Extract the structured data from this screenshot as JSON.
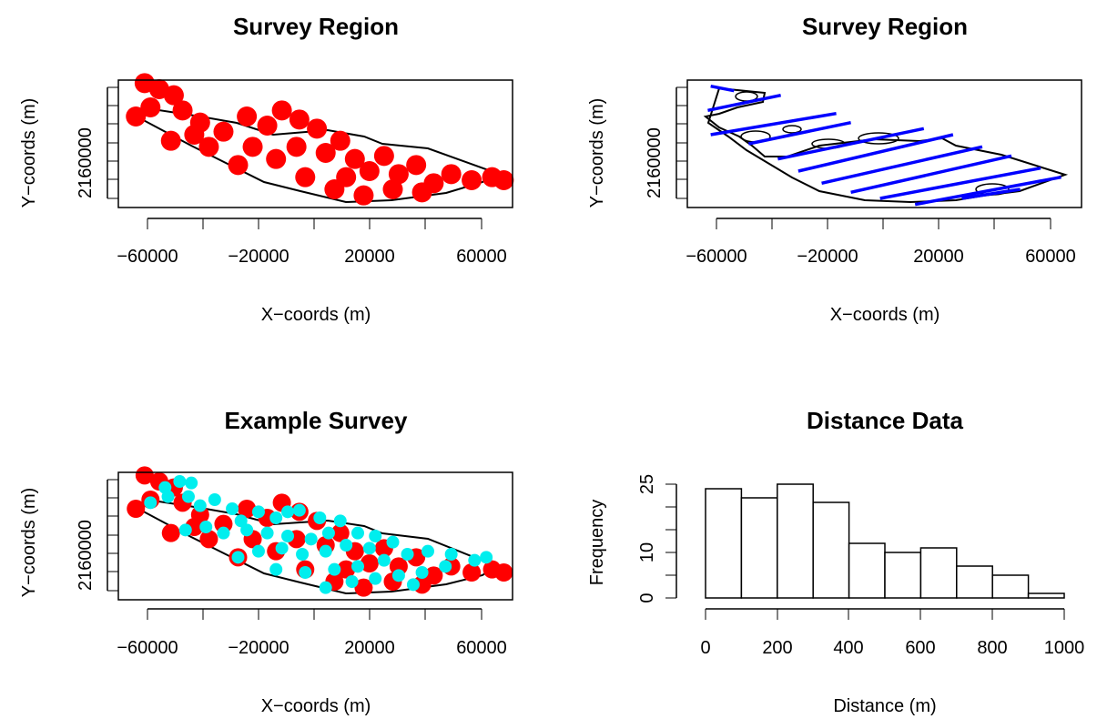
{
  "chart_data": [
    {
      "type": "scatter",
      "title": "Survey Region",
      "xlabel": "X−coords (m)",
      "ylabel": "Y−coords (m)",
      "xlim": [
        -66000,
        69000
      ],
      "ylim": [
        2154000,
        2196000
      ],
      "x_ticks": [
        "−60000",
        "−20000",
        "20000",
        "60000"
      ],
      "y_tick_labels": [
        "2160000"
      ],
      "colors": {
        "points": "#ff0000",
        "outline": "#000000"
      },
      "series": [
        {
          "values": [
            [
              -57000,
              2195000
            ],
            [
              -52000,
              2193000
            ],
            [
              -47000,
              2191000
            ],
            [
              -55000,
              2187000
            ],
            [
              -60000,
              2184000
            ],
            [
              -44000,
              2186000
            ],
            [
              -38000,
              2182000
            ],
            [
              -48000,
              2176000
            ],
            [
              -30000,
              2179000
            ],
            [
              -22000,
              2184000
            ],
            [
              -15000,
              2181000
            ],
            [
              -10000,
              2186000
            ],
            [
              -4000,
              2183000
            ],
            [
              2000,
              2180000
            ],
            [
              -20000,
              2174000
            ],
            [
              -12000,
              2170000
            ],
            [
              -5000,
              2174000
            ],
            [
              5000,
              2172000
            ],
            [
              10000,
              2176000
            ],
            [
              15000,
              2170000
            ],
            [
              20000,
              2166000
            ],
            [
              25000,
              2171000
            ],
            [
              30000,
              2165000
            ],
            [
              36000,
              2168000
            ],
            [
              42000,
              2162000
            ],
            [
              48000,
              2165000
            ],
            [
              55000,
              2163000
            ],
            [
              62000,
              2164000
            ],
            [
              66000,
              2163000
            ],
            [
              -2000,
              2164000
            ],
            [
              8000,
              2160000
            ],
            [
              18000,
              2158000
            ],
            [
              28000,
              2160000
            ],
            [
              38000,
              2159000
            ],
            [
              -25000,
              2168000
            ],
            [
              -35000,
              2174000
            ],
            [
              -40000,
              2178000
            ],
            [
              12000,
              2164000
            ]
          ]
        }
      ]
    },
    {
      "type": "line",
      "title": "Survey Region",
      "xlabel": "X−coords (m)",
      "ylabel": "Y−coords (m)",
      "xlim": [
        -66000,
        69000
      ],
      "ylim": [
        2154000,
        2196000
      ],
      "x_ticks": [
        "−60000",
        "−20000",
        "20000",
        "60000"
      ],
      "y_tick_labels": [
        "2160000"
      ],
      "colors": {
        "transects": "#0000ff",
        "outline": "#000000"
      },
      "series": [
        {
          "values": [
            [
              -58000,
              2194000
            ],
            [
              -50000,
              2192500
            ]
          ]
        },
        {
          "values": [
            [
              -59000,
              2186000
            ],
            [
              -34000,
              2191000
            ]
          ]
        },
        {
          "values": [
            [
              -58000,
              2178000
            ],
            [
              -15000,
              2185000
            ]
          ]
        },
        {
          "values": [
            [
              -45000,
              2175000
            ],
            [
              -10000,
              2182000
            ]
          ]
        },
        {
          "values": [
            [
              -35000,
              2170000
            ],
            [
              15000,
              2180000
            ]
          ]
        },
        {
          "values": [
            [
              -28000,
              2166000
            ],
            [
              25000,
              2178000
            ]
          ]
        },
        {
          "values": [
            [
              -20000,
              2162000
            ],
            [
              35000,
              2174000
            ]
          ]
        },
        {
          "values": [
            [
              -10000,
              2159000
            ],
            [
              45000,
              2171000
            ]
          ]
        },
        {
          "values": [
            [
              0,
              2157000
            ],
            [
              55000,
              2167000
            ]
          ]
        },
        {
          "values": [
            [
              12000,
              2155000
            ],
            [
              62000,
              2164000
            ]
          ]
        },
        {
          "values": [
            [
              28000,
              2157000
            ],
            [
              48000,
              2160000
            ]
          ]
        }
      ]
    },
    {
      "type": "scatter",
      "title": "Example Survey",
      "xlabel": "X−coords (m)",
      "ylabel": "Y−coords (m)",
      "xlim": [
        -66000,
        69000
      ],
      "ylim": [
        2154000,
        2196000
      ],
      "x_ticks": [
        "−60000",
        "−20000",
        "20000",
        "60000"
      ],
      "y_tick_labels": [
        "2160000"
      ],
      "colors": {
        "background_points": "#ff0000",
        "detections": "#00eeee",
        "outline": "#000000"
      },
      "series": [
        {
          "values": [
            [
              -57000,
              2195000
            ],
            [
              -52000,
              2193000
            ],
            [
              -47000,
              2191000
            ],
            [
              -55000,
              2187000
            ],
            [
              -60000,
              2184000
            ],
            [
              -44000,
              2186000
            ],
            [
              -38000,
              2182000
            ],
            [
              -48000,
              2176000
            ],
            [
              -30000,
              2179000
            ],
            [
              -22000,
              2184000
            ],
            [
              -15000,
              2181000
            ],
            [
              -10000,
              2186000
            ],
            [
              -4000,
              2183000
            ],
            [
              2000,
              2180000
            ],
            [
              -20000,
              2174000
            ],
            [
              -12000,
              2170000
            ],
            [
              -5000,
              2174000
            ],
            [
              5000,
              2172000
            ],
            [
              10000,
              2176000
            ],
            [
              15000,
              2170000
            ],
            [
              20000,
              2166000
            ],
            [
              25000,
              2171000
            ],
            [
              30000,
              2165000
            ],
            [
              36000,
              2168000
            ],
            [
              42000,
              2162000
            ],
            [
              48000,
              2165000
            ],
            [
              55000,
              2163000
            ],
            [
              62000,
              2164000
            ],
            [
              66000,
              2163000
            ],
            [
              -2000,
              2164000
            ],
            [
              8000,
              2160000
            ],
            [
              18000,
              2158000
            ],
            [
              28000,
              2160000
            ],
            [
              38000,
              2159000
            ],
            [
              -25000,
              2168000
            ],
            [
              -35000,
              2174000
            ],
            [
              -40000,
              2178000
            ],
            [
              12000,
              2164000
            ]
          ]
        },
        {
          "values": [
            [
              -50000,
              2191000
            ],
            [
              -45000,
              2193000
            ],
            [
              -41000,
              2192500
            ],
            [
              -55000,
              2186000
            ],
            [
              -49000,
              2188000
            ],
            [
              -42000,
              2188000
            ],
            [
              -38000,
              2185000
            ],
            [
              -33000,
              2187000
            ],
            [
              -27000,
              2184000
            ],
            [
              -24000,
              2180000
            ],
            [
              -18000,
              2183000
            ],
            [
              -12000,
              2181000
            ],
            [
              -8000,
              2183000
            ],
            [
              -4000,
              2183500
            ],
            [
              3000,
              2181000
            ],
            [
              10000,
              2180000
            ],
            [
              -43000,
              2177000
            ],
            [
              -36000,
              2178000
            ],
            [
              -30000,
              2176000
            ],
            [
              -22000,
              2177000
            ],
            [
              -15000,
              2176000
            ],
            [
              -8000,
              2175000
            ],
            [
              0,
              2174000
            ],
            [
              6000,
              2176000
            ],
            [
              16000,
              2176000
            ],
            [
              22000,
              2175000
            ],
            [
              -25000,
              2168000
            ],
            [
              -18000,
              2170000
            ],
            [
              -10000,
              2171000
            ],
            [
              -3000,
              2169000
            ],
            [
              5000,
              2170000
            ],
            [
              12000,
              2172000
            ],
            [
              20000,
              2171000
            ],
            [
              28000,
              2173000
            ],
            [
              -12000,
              2164000
            ],
            [
              -2000,
              2163000
            ],
            [
              8000,
              2164000
            ],
            [
              16000,
              2165000
            ],
            [
              25000,
              2167000
            ],
            [
              33000,
              2169000
            ],
            [
              40000,
              2170000
            ],
            [
              48000,
              2169000
            ],
            [
              56000,
              2167000
            ],
            [
              60000,
              2168000
            ],
            [
              5000,
              2158000
            ],
            [
              14000,
              2160000
            ],
            [
              22000,
              2161000
            ],
            [
              30000,
              2162000
            ],
            [
              38000,
              2163000
            ],
            [
              46000,
              2165000
            ],
            [
              35000,
              2159000
            ]
          ]
        }
      ]
    },
    {
      "type": "bar",
      "title": "Distance Data",
      "xlabel": "Distance (m)",
      "ylabel": "Frequency",
      "bin_edges": [
        0,
        100,
        200,
        300,
        400,
        500,
        600,
        700,
        800,
        900,
        1000
      ],
      "values": [
        24,
        22,
        25,
        21,
        12,
        10,
        11,
        7,
        5,
        1
      ],
      "xlim": [
        0,
        1000
      ],
      "ylim": [
        0,
        25
      ],
      "x_ticks": [
        "0",
        "200",
        "400",
        "600",
        "800",
        "1000"
      ],
      "y_ticks": [
        "0",
        "10",
        "25"
      ],
      "colors": {
        "bars": "#ffffff",
        "stroke": "#000000"
      }
    }
  ]
}
